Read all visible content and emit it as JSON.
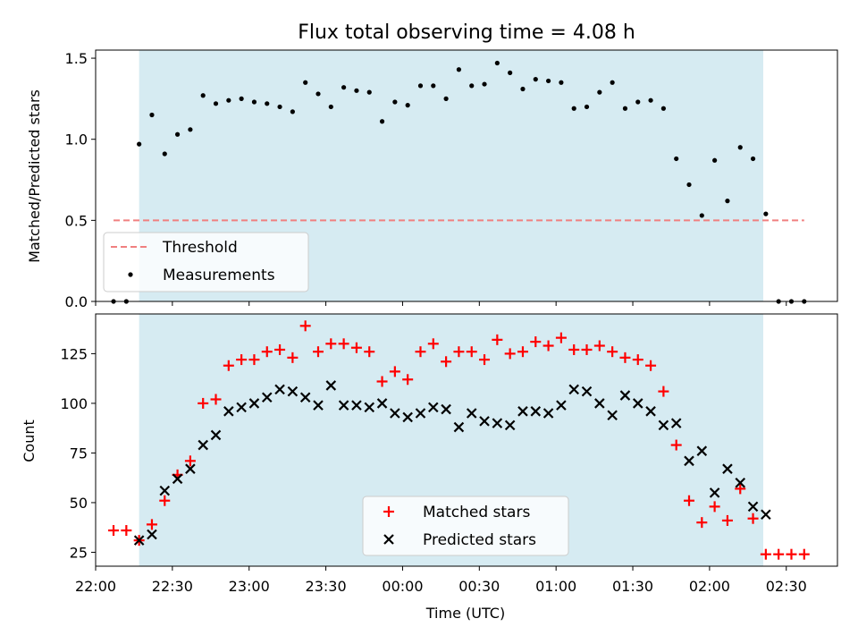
{
  "colors": {
    "shade": "#add8e6",
    "threshold": "#f08080",
    "measurement": "#000000",
    "matched": "#ff0000",
    "predicted": "#000000"
  },
  "chart_data": [
    {
      "type": "scatter",
      "title": "Flux total observing time = 4.08 h",
      "xlabel": "",
      "ylabel": "Matched/Predicted stars",
      "xlim": [
        "22:00",
        "02:50"
      ],
      "ylim": [
        0,
        1.55
      ],
      "yticks": [
        "0.0",
        "0.5",
        "1.0",
        "1.5"
      ],
      "shaded_region": [
        "22:17",
        "02:21"
      ],
      "legend": {
        "position": "lower-left",
        "entries": [
          "Threshold",
          "Measurements"
        ]
      },
      "threshold": {
        "name": "Threshold",
        "y": 0.5,
        "x_range": [
          "22:07",
          "02:37"
        ]
      },
      "series": [
        {
          "name": "Measurements",
          "x": [
            "22:07",
            "22:12",
            "22:17",
            "22:22",
            "22:27",
            "22:32",
            "22:37",
            "22:42",
            "22:47",
            "22:52",
            "22:57",
            "23:02",
            "23:07",
            "23:12",
            "23:17",
            "23:22",
            "23:27",
            "23:32",
            "23:37",
            "23:42",
            "23:47",
            "23:52",
            "23:57",
            "00:02",
            "00:07",
            "00:12",
            "00:17",
            "00:22",
            "00:27",
            "00:32",
            "00:37",
            "00:42",
            "00:47",
            "00:52",
            "00:57",
            "01:02",
            "01:07",
            "01:12",
            "01:17",
            "01:22",
            "01:27",
            "01:32",
            "01:37",
            "01:42",
            "01:47",
            "01:52",
            "01:57",
            "02:02",
            "02:07",
            "02:12",
            "02:17",
            "02:22",
            "02:27",
            "02:32",
            "02:37"
          ],
          "y": [
            0.0,
            0.0,
            0.97,
            1.15,
            0.91,
            1.03,
            1.06,
            1.27,
            1.22,
            1.24,
            1.25,
            1.23,
            1.22,
            1.2,
            1.17,
            1.35,
            1.28,
            1.2,
            1.32,
            1.3,
            1.29,
            1.11,
            1.23,
            1.21,
            1.33,
            1.33,
            1.25,
            1.43,
            1.33,
            1.34,
            1.47,
            1.41,
            1.31,
            1.37,
            1.36,
            1.35,
            1.19,
            1.2,
            1.29,
            1.35,
            1.19,
            1.23,
            1.24,
            1.19,
            0.88,
            0.72,
            0.53,
            0.87,
            0.62,
            0.95,
            0.88,
            0.54,
            0.0,
            0.0,
            0.0
          ]
        }
      ]
    },
    {
      "type": "scatter",
      "title": "",
      "xlabel": "Time (UTC)",
      "ylabel": "Count",
      "xlim": [
        "22:00",
        "02:50"
      ],
      "ylim": [
        18,
        145
      ],
      "xticks": [
        "22:00",
        "22:30",
        "23:00",
        "23:30",
        "00:00",
        "00:30",
        "01:00",
        "01:30",
        "02:00",
        "02:30"
      ],
      "yticks": [
        "25",
        "50",
        "75",
        "100",
        "125"
      ],
      "shaded_region": [
        "22:17",
        "02:21"
      ],
      "legend": {
        "position": "lower-center",
        "entries": [
          "Matched stars",
          "Predicted stars"
        ]
      },
      "series": [
        {
          "name": "Matched stars",
          "x": [
            "22:07",
            "22:12",
            "22:17",
            "22:22",
            "22:27",
            "22:32",
            "22:37",
            "22:42",
            "22:47",
            "22:52",
            "22:57",
            "23:02",
            "23:07",
            "23:12",
            "23:17",
            "23:22",
            "23:27",
            "23:32",
            "23:37",
            "23:42",
            "23:47",
            "23:52",
            "23:57",
            "00:02",
            "00:07",
            "00:12",
            "00:17",
            "00:22",
            "00:27",
            "00:32",
            "00:37",
            "00:42",
            "00:47",
            "00:52",
            "00:57",
            "01:02",
            "01:07",
            "01:12",
            "01:17",
            "01:22",
            "01:27",
            "01:32",
            "01:37",
            "01:42",
            "01:47",
            "01:52",
            "01:57",
            "02:02",
            "02:07",
            "02:12",
            "02:17",
            "02:22",
            "02:27",
            "02:32",
            "02:37"
          ],
          "y": [
            36,
            36,
            31,
            39,
            51,
            64,
            71,
            100,
            102,
            119,
            122,
            122,
            126,
            127,
            123,
            139,
            126,
            130,
            130,
            128,
            126,
            111,
            116,
            112,
            126,
            130,
            121,
            126,
            126,
            122,
            132,
            125,
            126,
            131,
            129,
            133,
            127,
            127,
            129,
            126,
            123,
            122,
            119,
            106,
            79,
            51,
            40,
            48,
            41,
            57,
            42,
            24,
            24,
            24,
            24
          ]
        },
        {
          "name": "Predicted stars",
          "x": [
            "22:17",
            "22:22",
            "22:27",
            "22:32",
            "22:37",
            "22:42",
            "22:47",
            "22:52",
            "22:57",
            "23:02",
            "23:07",
            "23:12",
            "23:17",
            "23:22",
            "23:27",
            "23:32",
            "23:37",
            "23:42",
            "23:47",
            "23:52",
            "23:57",
            "00:02",
            "00:07",
            "00:12",
            "00:17",
            "00:22",
            "00:27",
            "00:32",
            "00:37",
            "00:42",
            "00:47",
            "00:52",
            "00:57",
            "01:02",
            "01:07",
            "01:12",
            "01:17",
            "01:22",
            "01:27",
            "01:32",
            "01:37",
            "01:42",
            "01:47",
            "01:52",
            "01:57",
            "02:02",
            "02:07",
            "02:12",
            "02:17",
            "02:22"
          ],
          "y": [
            31,
            34,
            56,
            62,
            67,
            79,
            84,
            96,
            98,
            100,
            103,
            107,
            106,
            103,
            99,
            109,
            99,
            99,
            98,
            100,
            95,
            93,
            95,
            98,
            97,
            88,
            95,
            91,
            90,
            89,
            96,
            96,
            95,
            99,
            107,
            106,
            100,
            94,
            104,
            100,
            96,
            89,
            90,
            71,
            76,
            55,
            67,
            60,
            48,
            44
          ]
        }
      ]
    }
  ]
}
